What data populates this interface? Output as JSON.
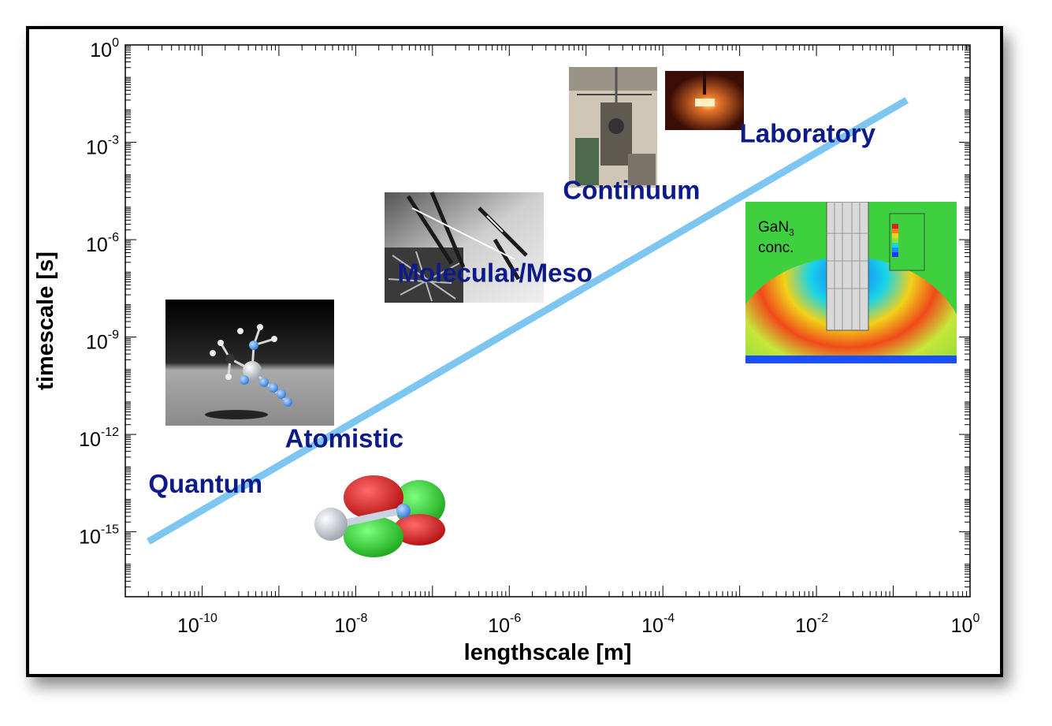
{
  "chart_data": {
    "type": "line",
    "x_scale": "log",
    "y_scale": "log",
    "xlim": [
      1e-11,
      1
    ],
    "ylim": [
      1e-17,
      1
    ],
    "xlabel": "lengthscale [m]",
    "ylabel": "timescale [s]",
    "x_ticks": [
      {
        "base": "10",
        "exp": "-10",
        "value": 1e-10
      },
      {
        "base": "10",
        "exp": "-8",
        "value": 1e-08
      },
      {
        "base": "10",
        "exp": "-6",
        "value": 1e-06
      },
      {
        "base": "10",
        "exp": "-4",
        "value": 0.0001
      },
      {
        "base": "10",
        "exp": "-2",
        "value": 0.01
      },
      {
        "base": "10",
        "exp": "0",
        "value": 1
      }
    ],
    "y_ticks": [
      {
        "base": "10",
        "exp": "0",
        "value": 1
      },
      {
        "base": "10",
        "exp": "-3",
        "value": 0.001
      },
      {
        "base": "10",
        "exp": "-6",
        "value": 1e-06
      },
      {
        "base": "10",
        "exp": "-9",
        "value": 1e-09
      },
      {
        "base": "10",
        "exp": "-12",
        "value": 1e-12
      },
      {
        "base": "10",
        "exp": "-15",
        "value": 1e-15
      }
    ],
    "series": [
      {
        "x": [
          2e-11,
          0.15
        ],
        "y": [
          5e-16,
          0.02
        ],
        "color": "#7dc6f2"
      }
    ],
    "annotations": [
      {
        "text": "Quantum",
        "x": 2e-11,
        "y": 1.6e-14
      },
      {
        "text": "Atomistic",
        "x": 1.2e-09,
        "y": 4e-13
      },
      {
        "text": "Molecular/Meso",
        "x": 3.5e-08,
        "y": 5e-08
      },
      {
        "text": "Continuum",
        "x": 5e-06,
        "y": 1.8e-05
      },
      {
        "text": "Laboratory",
        "x": 0.001,
        "y": 0.001
      }
    ],
    "inset_text": {
      "species": "GaN",
      "subscript": "3",
      "label": "conc."
    },
    "grid": false,
    "legend": false
  },
  "colors": {
    "label_text": "#0d1a8a",
    "trend_line": "#7dc6f2",
    "axis": "#000000"
  },
  "images": [
    {
      "kind": "molecule-render",
      "icon": "molecule-icon"
    },
    {
      "kind": "micrograph",
      "icon": "micrograph-icon"
    },
    {
      "kind": "laboratory-photo",
      "icon": "lab-photo-icon"
    },
    {
      "kind": "reactor-photo",
      "icon": "reactor-icon"
    },
    {
      "kind": "concentration-map",
      "icon": "contour-map-icon"
    },
    {
      "kind": "orbital-render",
      "icon": "orbital-icon"
    }
  ]
}
